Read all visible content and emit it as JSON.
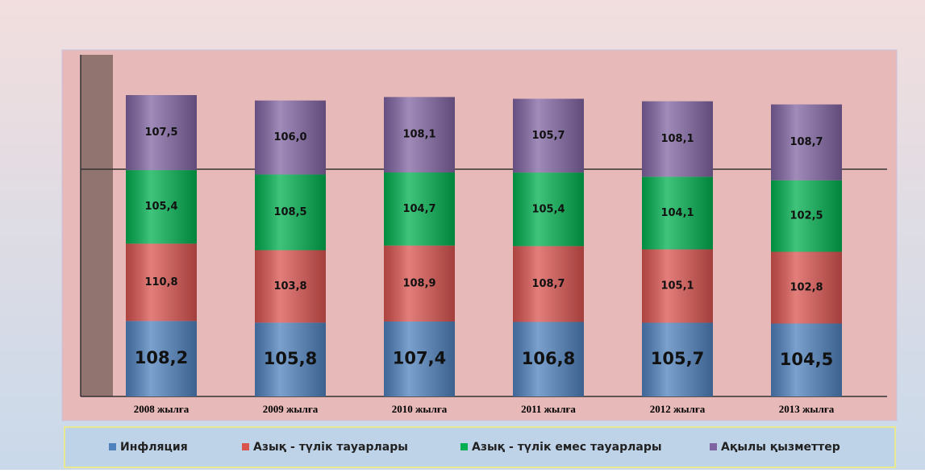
{
  "chart_data": {
    "type": "stacked_bar",
    "categories": [
      "2008 жылға",
      "2009 жылға",
      "2010 жылға",
      "2011 жылға",
      "2012 жылға",
      "2013 жылға"
    ],
    "series": [
      {
        "name": "Инфляция",
        "color": "#4f81bd",
        "values": [
          108.2,
          105.8,
          107.4,
          106.8,
          105.7,
          104.5
        ],
        "value_labels": [
          "108,2",
          "105,8",
          "107,4",
          "106,8",
          "105,7",
          "104,5"
        ]
      },
      {
        "name": "Азық - түлік тауарлары",
        "color": "#d9534f",
        "values": [
          110.8,
          103.8,
          108.9,
          108.7,
          105.1,
          102.8
        ],
        "value_labels": [
          "110,8",
          "103,8",
          "108,9",
          "108,7",
          "105,1",
          "102,8"
        ]
      },
      {
        "name": "Азық - түлік емес тауарлары",
        "color": "#00b050",
        "values": [
          105.4,
          108.5,
          104.7,
          105.4,
          104.1,
          102.5
        ],
        "value_labels": [
          "105,4",
          "108,5",
          "104,7",
          "105,4",
          "104,1",
          "102,5"
        ]
      },
      {
        "name": "Ақылы қызметтер",
        "color": "#8064a2",
        "values": [
          107.5,
          106.0,
          108.1,
          105.7,
          108.1,
          108.7
        ],
        "value_labels": [
          "107,5",
          "106,0",
          "108,1",
          "105,7",
          "108,1",
          "108,7"
        ]
      }
    ],
    "legend": "bottom"
  }
}
